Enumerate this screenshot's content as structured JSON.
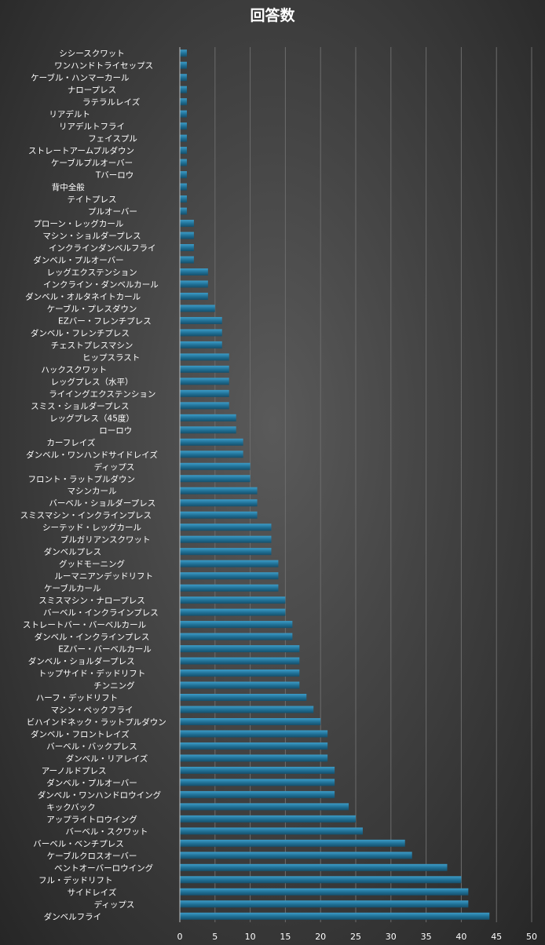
{
  "chart_data": {
    "type": "bar",
    "orientation": "horizontal",
    "title": "回答数",
    "xlabel": "",
    "ylabel": "",
    "xlim": [
      0,
      50
    ],
    "xticks": [
      0,
      5,
      10,
      15,
      20,
      25,
      30,
      35,
      40,
      45,
      50
    ],
    "grid": true,
    "bar_color": "#1f6f94",
    "categories": [
      "シシースクワット",
      "ワンハンドトライセップス",
      "ケーブル・ハンマーカール",
      "ナロープレス",
      "ラテラルレイズ",
      "リアデルト",
      "リアデルトフライ",
      "フェイスプル",
      "ストレートアームプルダウン",
      "ケーブルプルオーバー",
      "Tバーロウ",
      "背中全般",
      "テイトプレス",
      "プルオーバー",
      "プローン・レッグカール",
      "マシン・ショルダープレス",
      "インクラインダンベルフライ",
      "ダンベル・プルオーバー",
      "レッグエクステンション",
      "インクライン・ダンベルカール",
      "ダンベル・オルタネイトカール",
      "ケーブル・プレスダウン",
      "EZバー・フレンチプレス",
      "ダンベル・フレンチプレス",
      "チェストプレスマシン",
      "ヒップスラスト",
      "ハックスクワット",
      "レッグプレス（水平）",
      "ライイングエクステンション",
      "スミス・ショルダープレス",
      "レッグプレス（45度）",
      "ローロウ",
      "カーフレイズ",
      "ダンベル・ワンハンドサイドレイズ",
      "ディップス",
      "フロント・ラットプルダウン",
      "マシンカール",
      "バーベル・ショルダープレス",
      "スミスマシン・インクラインプレス",
      "シーテッド・レッグカール",
      "ブルガリアンスクワット",
      "ダンベルプレス",
      "グッドモーニング",
      "ルーマニアンデッドリフト",
      "ケーブルカール",
      "スミスマシン・ナロープレス",
      "バーベル・インクラインプレス",
      "ストレートバー・バーベルカール",
      "ダンベル・インクラインプレス",
      "EZバー・バーベルカール",
      "ダンベル・ショルダープレス",
      "トップサイド・デッドリフト",
      "チンニング",
      "ハーフ・デッドリフト",
      "マシン・ペックフライ",
      "ビハインドネック・ラットプルダウン",
      "ダンベル・フロントレイズ",
      "バーベル・バックプレス",
      "ダンベル・リアレイズ",
      "アーノルドプレス",
      "ダンベル・プルオーバー",
      "ダンベル・ワンハンドロウイング",
      "キックバック",
      "アップライトロウイング",
      "バーベル・スクワット",
      "バーベル・ベンチプレス",
      "ケーブルクロスオーバー",
      "ベントオーバーロウイング",
      "フル・デッドリフト",
      "サイドレイズ",
      "ディップス",
      "ダンベルフライ"
    ],
    "values": [
      1,
      1,
      1,
      1,
      1,
      1,
      1,
      1,
      1,
      1,
      1,
      1,
      1,
      1,
      2,
      2,
      2,
      2,
      4,
      4,
      4,
      5,
      6,
      6,
      6,
      7,
      7,
      7,
      7,
      7,
      8,
      8,
      9,
      9,
      10,
      10,
      11,
      11,
      11,
      13,
      13,
      13,
      14,
      14,
      14,
      15,
      15,
      16,
      16,
      17,
      17,
      17,
      17,
      18,
      19,
      20,
      21,
      21,
      21,
      22,
      22,
      22,
      24,
      25,
      26,
      32,
      33,
      38,
      40,
      41,
      41,
      44
    ]
  }
}
